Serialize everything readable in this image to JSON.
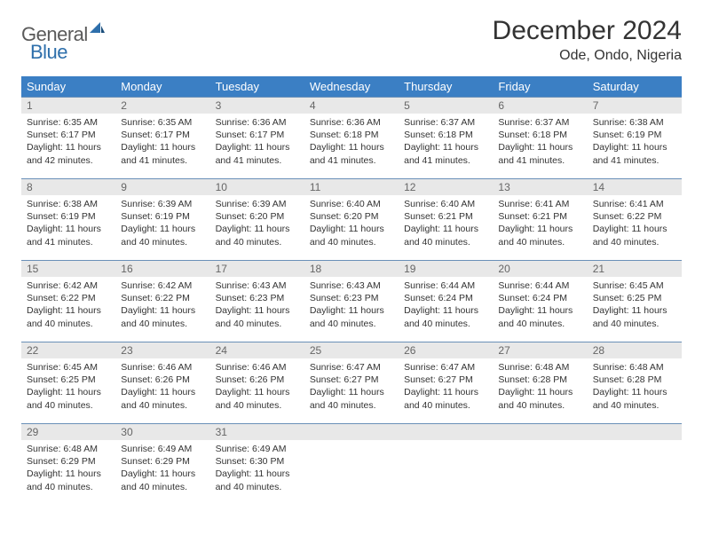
{
  "logo": {
    "text1": "General",
    "text2": "Blue"
  },
  "title": "December 2024",
  "location": "Ode, Ondo, Nigeria",
  "colors": {
    "header_bg": "#3b7fc4",
    "header_text": "#ffffff",
    "daybar_bg": "#e8e8e8",
    "daybar_text": "#666666",
    "row_border": "#6a90b8",
    "body_text": "#333333",
    "logo_gray": "#5a5a5a",
    "logo_blue": "#2e6fab"
  },
  "weekdays": [
    "Sunday",
    "Monday",
    "Tuesday",
    "Wednesday",
    "Thursday",
    "Friday",
    "Saturday"
  ],
  "days": [
    {
      "n": 1,
      "sr": "6:35 AM",
      "ss": "6:17 PM",
      "dl": "11 hours and 42 minutes."
    },
    {
      "n": 2,
      "sr": "6:35 AM",
      "ss": "6:17 PM",
      "dl": "11 hours and 41 minutes."
    },
    {
      "n": 3,
      "sr": "6:36 AM",
      "ss": "6:17 PM",
      "dl": "11 hours and 41 minutes."
    },
    {
      "n": 4,
      "sr": "6:36 AM",
      "ss": "6:18 PM",
      "dl": "11 hours and 41 minutes."
    },
    {
      "n": 5,
      "sr": "6:37 AM",
      "ss": "6:18 PM",
      "dl": "11 hours and 41 minutes."
    },
    {
      "n": 6,
      "sr": "6:37 AM",
      "ss": "6:18 PM",
      "dl": "11 hours and 41 minutes."
    },
    {
      "n": 7,
      "sr": "6:38 AM",
      "ss": "6:19 PM",
      "dl": "11 hours and 41 minutes."
    },
    {
      "n": 8,
      "sr": "6:38 AM",
      "ss": "6:19 PM",
      "dl": "11 hours and 41 minutes."
    },
    {
      "n": 9,
      "sr": "6:39 AM",
      "ss": "6:19 PM",
      "dl": "11 hours and 40 minutes."
    },
    {
      "n": 10,
      "sr": "6:39 AM",
      "ss": "6:20 PM",
      "dl": "11 hours and 40 minutes."
    },
    {
      "n": 11,
      "sr": "6:40 AM",
      "ss": "6:20 PM",
      "dl": "11 hours and 40 minutes."
    },
    {
      "n": 12,
      "sr": "6:40 AM",
      "ss": "6:21 PM",
      "dl": "11 hours and 40 minutes."
    },
    {
      "n": 13,
      "sr": "6:41 AM",
      "ss": "6:21 PM",
      "dl": "11 hours and 40 minutes."
    },
    {
      "n": 14,
      "sr": "6:41 AM",
      "ss": "6:22 PM",
      "dl": "11 hours and 40 minutes."
    },
    {
      "n": 15,
      "sr": "6:42 AM",
      "ss": "6:22 PM",
      "dl": "11 hours and 40 minutes."
    },
    {
      "n": 16,
      "sr": "6:42 AM",
      "ss": "6:22 PM",
      "dl": "11 hours and 40 minutes."
    },
    {
      "n": 17,
      "sr": "6:43 AM",
      "ss": "6:23 PM",
      "dl": "11 hours and 40 minutes."
    },
    {
      "n": 18,
      "sr": "6:43 AM",
      "ss": "6:23 PM",
      "dl": "11 hours and 40 minutes."
    },
    {
      "n": 19,
      "sr": "6:44 AM",
      "ss": "6:24 PM",
      "dl": "11 hours and 40 minutes."
    },
    {
      "n": 20,
      "sr": "6:44 AM",
      "ss": "6:24 PM",
      "dl": "11 hours and 40 minutes."
    },
    {
      "n": 21,
      "sr": "6:45 AM",
      "ss": "6:25 PM",
      "dl": "11 hours and 40 minutes."
    },
    {
      "n": 22,
      "sr": "6:45 AM",
      "ss": "6:25 PM",
      "dl": "11 hours and 40 minutes."
    },
    {
      "n": 23,
      "sr": "6:46 AM",
      "ss": "6:26 PM",
      "dl": "11 hours and 40 minutes."
    },
    {
      "n": 24,
      "sr": "6:46 AM",
      "ss": "6:26 PM",
      "dl": "11 hours and 40 minutes."
    },
    {
      "n": 25,
      "sr": "6:47 AM",
      "ss": "6:27 PM",
      "dl": "11 hours and 40 minutes."
    },
    {
      "n": 26,
      "sr": "6:47 AM",
      "ss": "6:27 PM",
      "dl": "11 hours and 40 minutes."
    },
    {
      "n": 27,
      "sr": "6:48 AM",
      "ss": "6:28 PM",
      "dl": "11 hours and 40 minutes."
    },
    {
      "n": 28,
      "sr": "6:48 AM",
      "ss": "6:28 PM",
      "dl": "11 hours and 40 minutes."
    },
    {
      "n": 29,
      "sr": "6:48 AM",
      "ss": "6:29 PM",
      "dl": "11 hours and 40 minutes."
    },
    {
      "n": 30,
      "sr": "6:49 AM",
      "ss": "6:29 PM",
      "dl": "11 hours and 40 minutes."
    },
    {
      "n": 31,
      "sr": "6:49 AM",
      "ss": "6:30 PM",
      "dl": "11 hours and 40 minutes."
    }
  ],
  "labels": {
    "sunrise": "Sunrise:",
    "sunset": "Sunset:",
    "daylight": "Daylight:"
  }
}
